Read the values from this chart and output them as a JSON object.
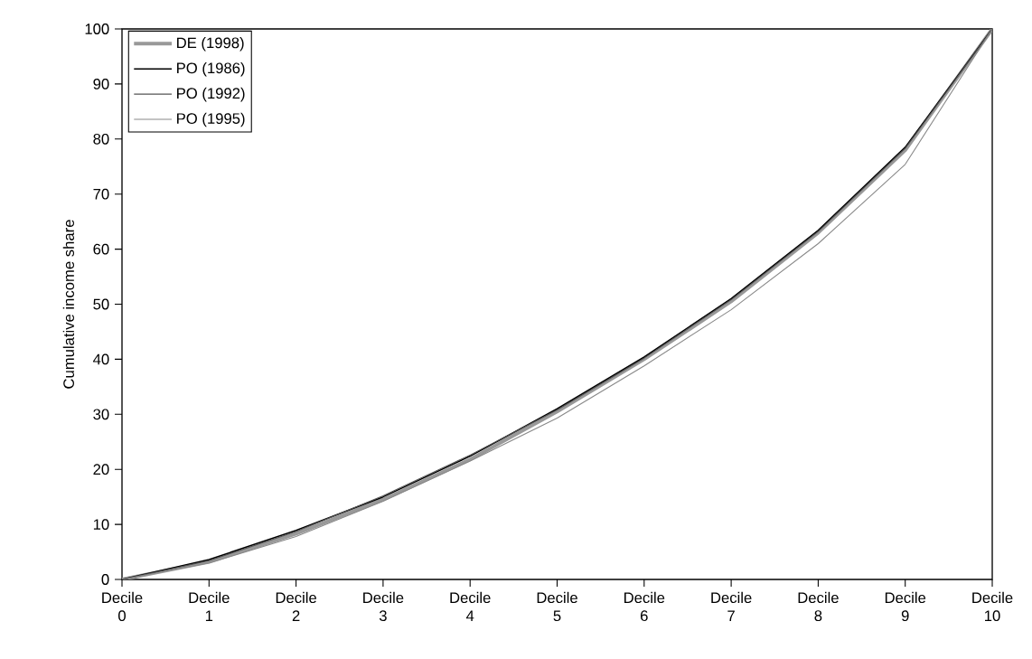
{
  "chart_data": {
    "type": "line",
    "ylabel": "Cumulative income share",
    "categories": [
      "Decile 0",
      "Decile 1",
      "Decile 2",
      "Decile 3",
      "Decile 4",
      "Decile 5",
      "Decile 6",
      "Decile 7",
      "Decile 8",
      "Decile 9",
      "Decile 10"
    ],
    "series": [
      {
        "name": "DE (1998)",
        "color": "#999999",
        "values": [
          0,
          3.2,
          8.3,
          14.5,
          21.8,
          30.5,
          40.0,
          50.5,
          63.0,
          78.0,
          100
        ]
      },
      {
        "name": "PO (1986)",
        "color": "#000000",
        "values": [
          0,
          3.6,
          8.9,
          15.0,
          22.4,
          31.0,
          40.4,
          51.0,
          63.4,
          78.5,
          100
        ]
      },
      {
        "name": "PO (1992)",
        "color": "#555555",
        "values": [
          0,
          3.4,
          8.7,
          15.2,
          22.6,
          30.8,
          40.2,
          50.8,
          63.2,
          78.3,
          100
        ]
      },
      {
        "name": "PO (1995)",
        "color": "#888888",
        "values": [
          0,
          3.0,
          7.8,
          14.2,
          21.5,
          29.3,
          38.8,
          49.0,
          61.0,
          75.4,
          100
        ]
      }
    ],
    "ylim": [
      0,
      100
    ],
    "yticks": [
      0,
      10,
      20,
      30,
      40,
      50,
      60,
      70,
      80,
      90,
      100
    ],
    "grid": false,
    "legend": "top left",
    "marker": "none",
    "line_style": "solid"
  }
}
